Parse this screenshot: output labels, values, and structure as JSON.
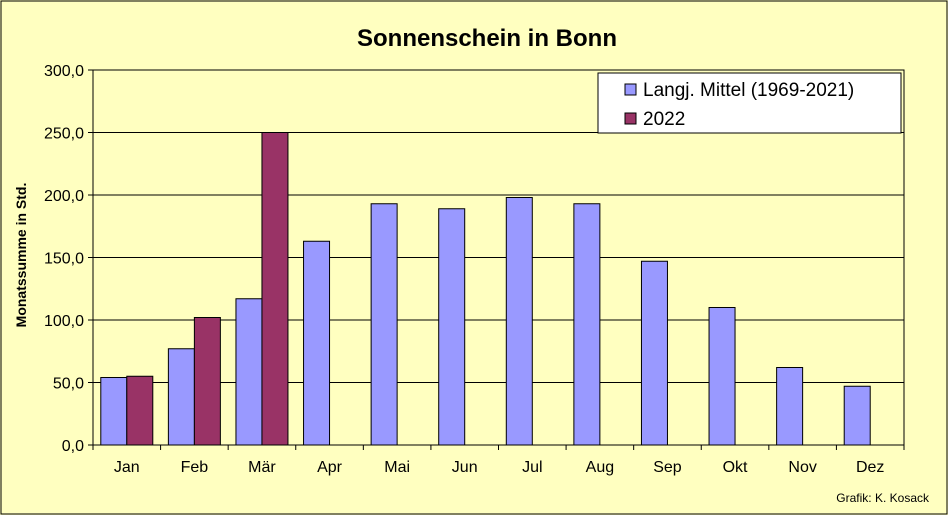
{
  "colors": {
    "background": "#ffffc0",
    "series_mean": "#9999ff",
    "series_2022": "#993366",
    "grid": "#000000"
  },
  "chart_data": {
    "type": "bar",
    "title": "Sonnenschein in Bonn",
    "xlabel": "",
    "ylabel": "Monatssumme in Std.",
    "ylim": [
      0,
      300
    ],
    "yticks": [
      "0,0",
      "50,0",
      "100,0",
      "150,0",
      "200,0",
      "250,0",
      "300,0"
    ],
    "grid": true,
    "legend_position": "top-right",
    "categories": [
      "Jan",
      "Feb",
      "Mär",
      "Apr",
      "Mai",
      "Jun",
      "Jul",
      "Aug",
      "Sep",
      "Okt",
      "Nov",
      "Dez"
    ],
    "series": [
      {
        "name": "Langj. Mittel (1969-2021)",
        "values": [
          54,
          77,
          117,
          163,
          193,
          189,
          198,
          193,
          147,
          110,
          62,
          47
        ]
      },
      {
        "name": "2022",
        "values": [
          55,
          102,
          250,
          null,
          null,
          null,
          null,
          null,
          null,
          null,
          null,
          null
        ]
      }
    ]
  },
  "credit": "Grafik:  K. Kosack"
}
